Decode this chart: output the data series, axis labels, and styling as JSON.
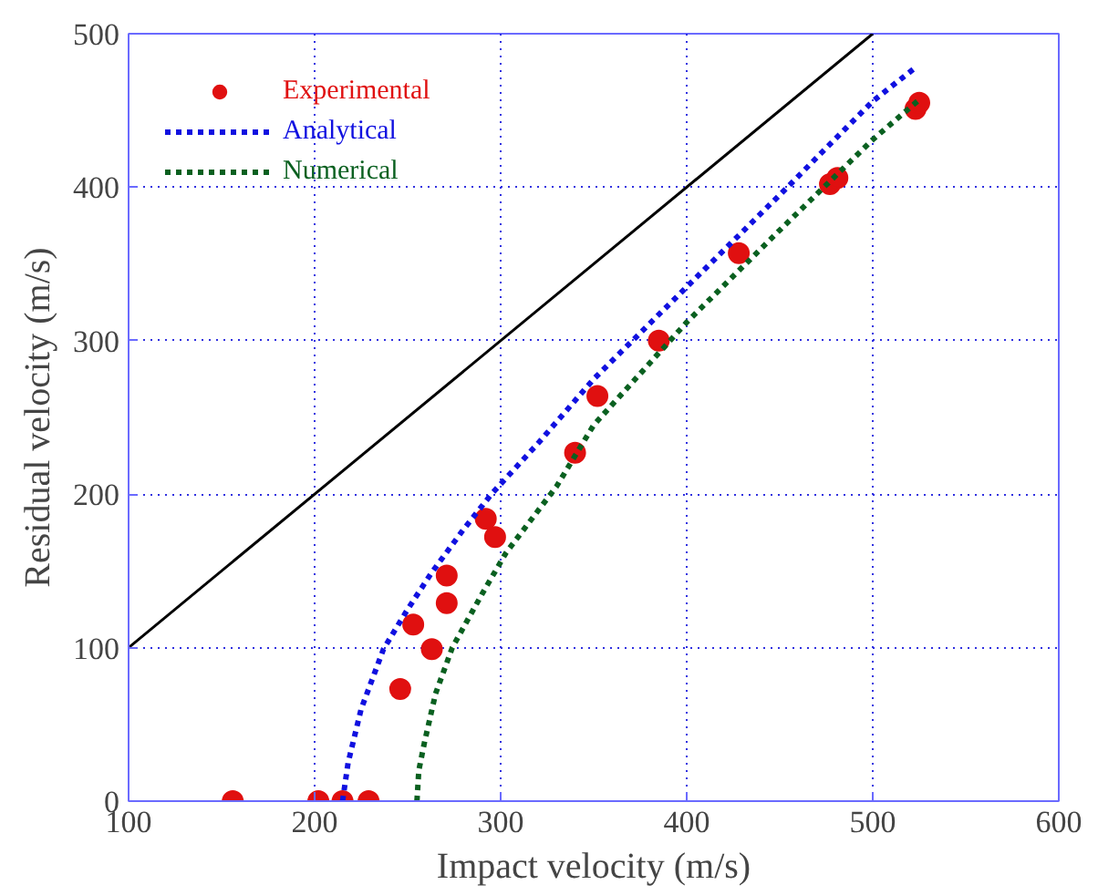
{
  "chart_data": {
    "type": "scatter",
    "xlabel": "Impact velocity (m/s)",
    "ylabel": "Residual velocity (m/s)",
    "xlim": [
      100,
      600
    ],
    "ylim": [
      0,
      500
    ],
    "xticks": [
      100,
      200,
      300,
      400,
      500,
      600
    ],
    "yticks": [
      0,
      100,
      200,
      300,
      400,
      500
    ],
    "grid": true,
    "legend": "top left",
    "series": [
      {
        "name": "Experimental",
        "marker": "circle",
        "color": "#e01010",
        "x": [
          156,
          202,
          215,
          229,
          246,
          253,
          263,
          271,
          271,
          292,
          297,
          340,
          352,
          385,
          428,
          477,
          481,
          523,
          525
        ],
        "values": [
          0,
          0,
          0,
          0,
          73,
          115,
          99,
          147,
          129,
          184,
          172,
          227,
          264,
          300,
          357,
          402,
          406,
          451,
          455
        ]
      },
      {
        "name": "Analytical",
        "type": "line",
        "line_style": "dotted",
        "color": "#1010e0",
        "x": [
          215,
          218,
          225,
          237,
          250,
          263,
          280,
          295,
          320,
          350,
          400,
          450,
          500,
          524
        ],
        "values": [
          0,
          25,
          60,
          99,
          125,
          149,
          177,
          200,
          233,
          275,
          335,
          395,
          456,
          479
        ]
      },
      {
        "name": "Numerical",
        "type": "line",
        "line_style": "dotted",
        "color": "#0a6020",
        "x": [
          255,
          256,
          259,
          265,
          274,
          290,
          303,
          330,
          350,
          400,
          450,
          500,
          524
        ],
        "values": [
          0,
          20,
          38,
          70,
          100,
          135,
          162,
          205,
          245,
          312,
          372,
          431,
          456
        ]
      },
      {
        "type": "line",
        "line_style": "solid",
        "color": "#000000",
        "x": [
          100,
          500
        ],
        "values": [
          100,
          500
        ]
      }
    ]
  }
}
